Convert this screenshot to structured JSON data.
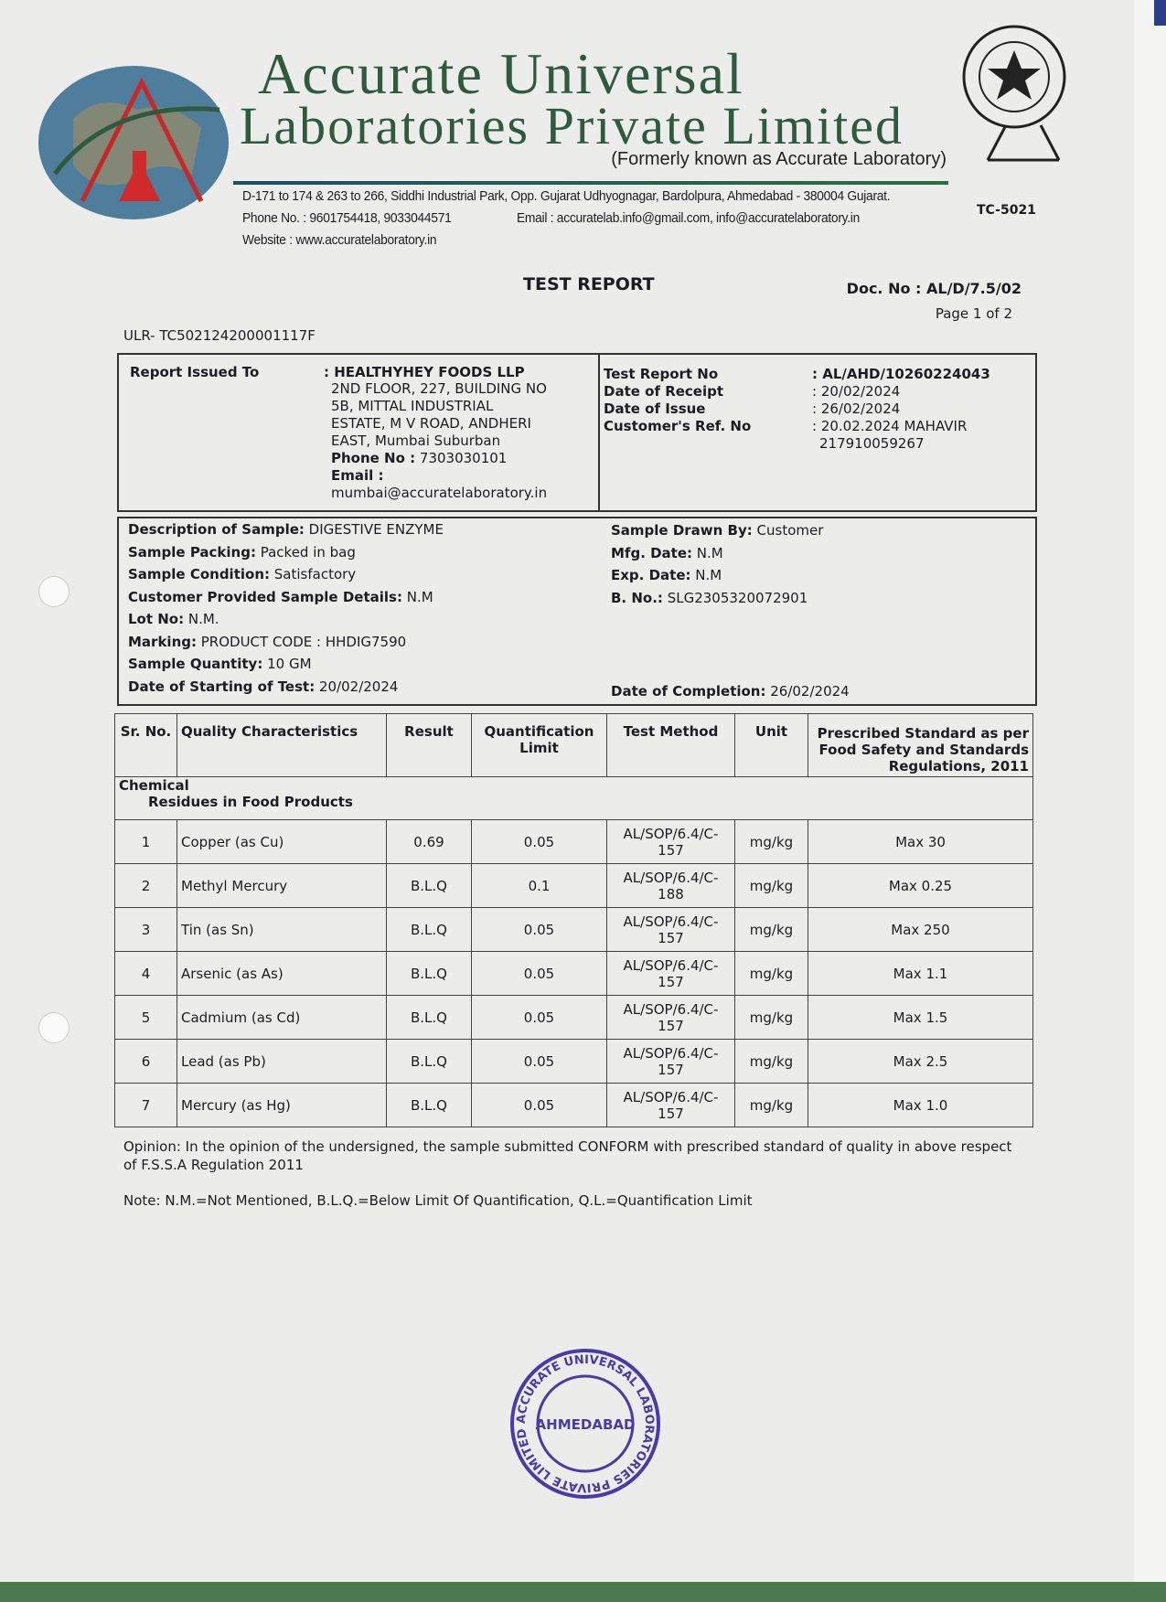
{
  "header": {
    "company_line1": "Accurate Universal",
    "company_line2": "Laboratories Private Limited",
    "formerly": "(Formerly known as Accurate Laboratory)",
    "address": "D-171 to 174 & 263 to 266, Siddhi Industrial Park, Opp. Gujarat Udhyognagar, Bardolpura, Ahmedabad - 380004 Gujarat.",
    "phone": "Phone No. : 9601754418, 9033044571",
    "email": "Email : accuratelab.info@gmail.com,  info@accuratelaboratory.in",
    "website": "Website : www.accuratelaboratory.in",
    "accreditation": "TC-5021"
  },
  "report": {
    "title": "TEST REPORT",
    "doc_no": "Doc. No : AL/D/7.5/02",
    "page": "Page 1 of 2",
    "ulr": "ULR- TC502124200001117F"
  },
  "issued": {
    "label": "Report Issued To",
    "name": ": HEALTHYHEY FOODS LLP",
    "address": [
      "2ND FLOOR, 227, BUILDING NO",
      "5B, MITTAL INDUSTRIAL",
      "ESTATE, M V ROAD, ANDHERI",
      "EAST, Mumbai Suburban"
    ],
    "phone_label": "Phone No :",
    "phone": " 7303030101",
    "email_label": "Email :",
    "email": "mumbai@accuratelaboratory.in",
    "fields": [
      {
        "label": "Test Report No",
        "value": ": AL/AHD/10260224043"
      },
      {
        "label": "Date of Receipt",
        "value": ": 20/02/2024"
      },
      {
        "label": "Date of Issue",
        "value": ": 26/02/2024"
      },
      {
        "label": "Customer's Ref. No",
        "value": ": 20.02.2024  MAHAVIR"
      }
    ],
    "ref_line2": "217910059267"
  },
  "sample": {
    "left": [
      {
        "label": "Description of Sample:",
        "value": " DIGESTIVE ENZYME"
      },
      {
        "label": "Sample Packing:",
        "value": " Packed in bag"
      },
      {
        "label": "Sample Condition:",
        "value": " Satisfactory"
      },
      {
        "label": "Customer Provided Sample Details:",
        "value": " N.M"
      },
      {
        "label": "Lot No:",
        "value": " N.M."
      },
      {
        "label": "Marking:",
        "value": " PRODUCT CODE : HHDIG7590"
      },
      {
        "label": "Sample Quantity:",
        "value": " 10 GM"
      },
      {
        "label": "Date of Starting of Test:",
        "value": " 20/02/2024"
      }
    ],
    "right": [
      {
        "label": "Sample Drawn By:",
        "value": " Customer"
      },
      {
        "label": "Mfg. Date:",
        "value": " N.M"
      },
      {
        "label": "Exp. Date:",
        "value": " N.M"
      },
      {
        "label": "B. No.:",
        "value": " SLG2305320072901"
      }
    ],
    "completion": {
      "label": "Date of Completion:",
      "value": " 26/02/2024"
    }
  },
  "table": {
    "headers": [
      "Sr. No.",
      "Quality Characteristics",
      "Result",
      "Quantification Limit",
      "Test Method",
      "Unit",
      "Prescribed Standard as per Food Safety and Standards Regulations, 2011"
    ],
    "group": "Chemical",
    "subgroup": "Residues in Food Products",
    "rows": [
      [
        "1",
        "Copper (as Cu)",
        "0.69",
        "0.05",
        "AL/SOP/6.4/C-157",
        "mg/kg",
        "Max 30"
      ],
      [
        "2",
        "Methyl Mercury",
        "B.L.Q",
        "0.1",
        "AL/SOP/6.4/C-188",
        "mg/kg",
        "Max 0.25"
      ],
      [
        "3",
        "Tin (as Sn)",
        "B.L.Q",
        "0.05",
        "AL/SOP/6.4/C-157",
        "mg/kg",
        "Max 250"
      ],
      [
        "4",
        "Arsenic (as As)",
        "B.L.Q",
        "0.05",
        "AL/SOP/6.4/C-157",
        "mg/kg",
        "Max 1.1"
      ],
      [
        "5",
        "Cadmium (as Cd)",
        "B.L.Q",
        "0.05",
        "AL/SOP/6.4/C-157",
        "mg/kg",
        "Max 1.5"
      ],
      [
        "6",
        "Lead (as Pb)",
        "B.L.Q",
        "0.05",
        "AL/SOP/6.4/C-157",
        "mg/kg",
        "Max 2.5"
      ],
      [
        "7",
        "Mercury (as Hg)",
        "B.L.Q",
        "0.05",
        "AL/SOP/6.4/C-157",
        "mg/kg",
        "Max 1.0"
      ]
    ]
  },
  "opinion": "Opinion: In the opinion of the undersigned, the sample submitted CONFORM with prescribed standard of quality in above respect of F.S.S.A Regulation 2011",
  "note": "Note: N.M.=Not Mentioned, B.L.Q.=Below Limit Of Quantification, Q.L.=Quantification Limit",
  "stamp": {
    "text": "ACCURATE UNIVERSAL LABORATORIES PRIVATE LIMITED",
    "center": "AHMEDABAD",
    "color": "#4a3aa8"
  },
  "colors": {
    "brand_green": "#2f5a3e",
    "stamp": "#4a3aa8"
  }
}
